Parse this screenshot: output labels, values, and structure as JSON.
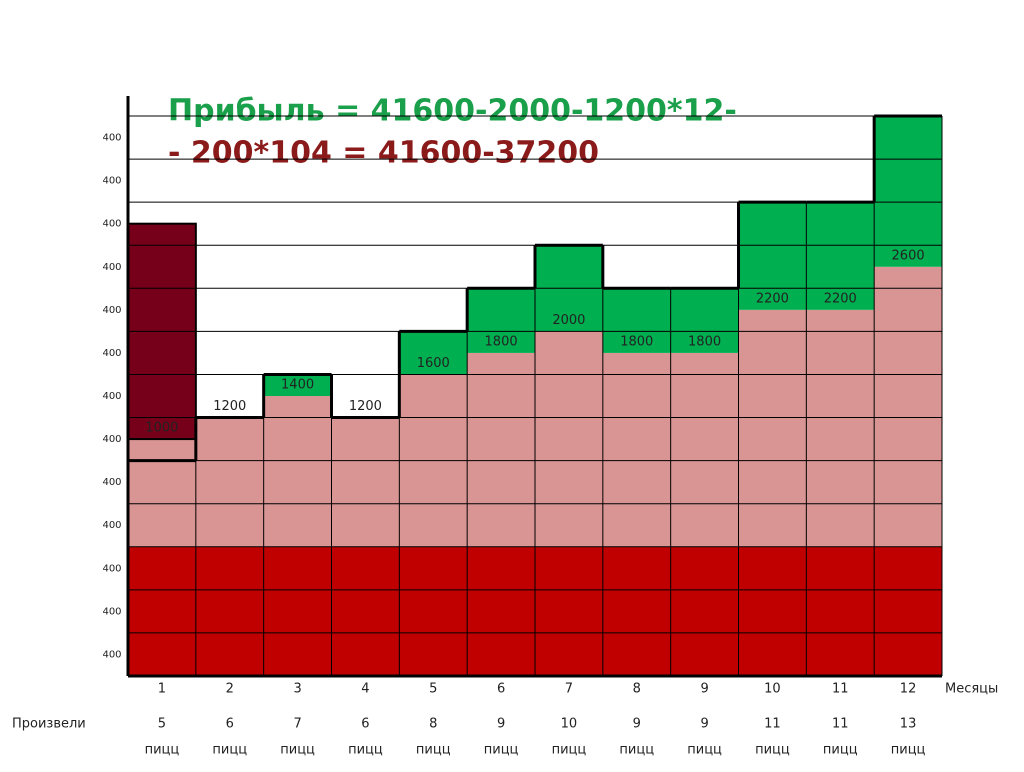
{
  "chart_data": {
    "type": "grid-bar",
    "title_lines": [
      "Прибыль = 41600-2000-1200*12-",
      "- 200*104 = 41600-37200"
    ],
    "categories": [
      "1",
      "2",
      "3",
      "4",
      "5",
      "6",
      "7",
      "8",
      "9",
      "10",
      "11",
      "12"
    ],
    "x_label": "Месяцы",
    "produced_label": "Произвели",
    "produced": [
      5,
      6,
      7,
      6,
      8,
      9,
      10,
      9,
      9,
      11,
      11,
      13
    ],
    "unit": "пицц",
    "row_labels": [
      400,
      400,
      400,
      400,
      400,
      400,
      400,
      400,
      400,
      400,
      400,
      400,
      400
    ],
    "fixed": [
      1200,
      1200,
      1200,
      1200,
      1200,
      1200,
      1200,
      1200,
      1200,
      1200,
      1200,
      1200
    ],
    "variable": [
      1000,
      1200,
      1400,
      1200,
      1600,
      1800,
      2000,
      1800,
      1800,
      2200,
      2200,
      2600
    ],
    "revenue": [
      2000,
      2400,
      2800,
      2400,
      3200,
      3600,
      4000,
      3600,
      3600,
      4400,
      4400,
      5200
    ],
    "loss_extent": [
      4200,
      null,
      null,
      null,
      null,
      null,
      null,
      null,
      null,
      null,
      null,
      null
    ],
    "colors": {
      "fixed": "#c00000",
      "variable": "#d99594",
      "revenue": "#00b050",
      "loss": "#76001a"
    },
    "ylim": [
      0,
      5200
    ],
    "yticks": [
      0,
      400,
      800,
      1200,
      1600,
      2000,
      2400,
      2800,
      3200,
      3600,
      4000,
      4400,
      4800,
      5200
    ]
  }
}
